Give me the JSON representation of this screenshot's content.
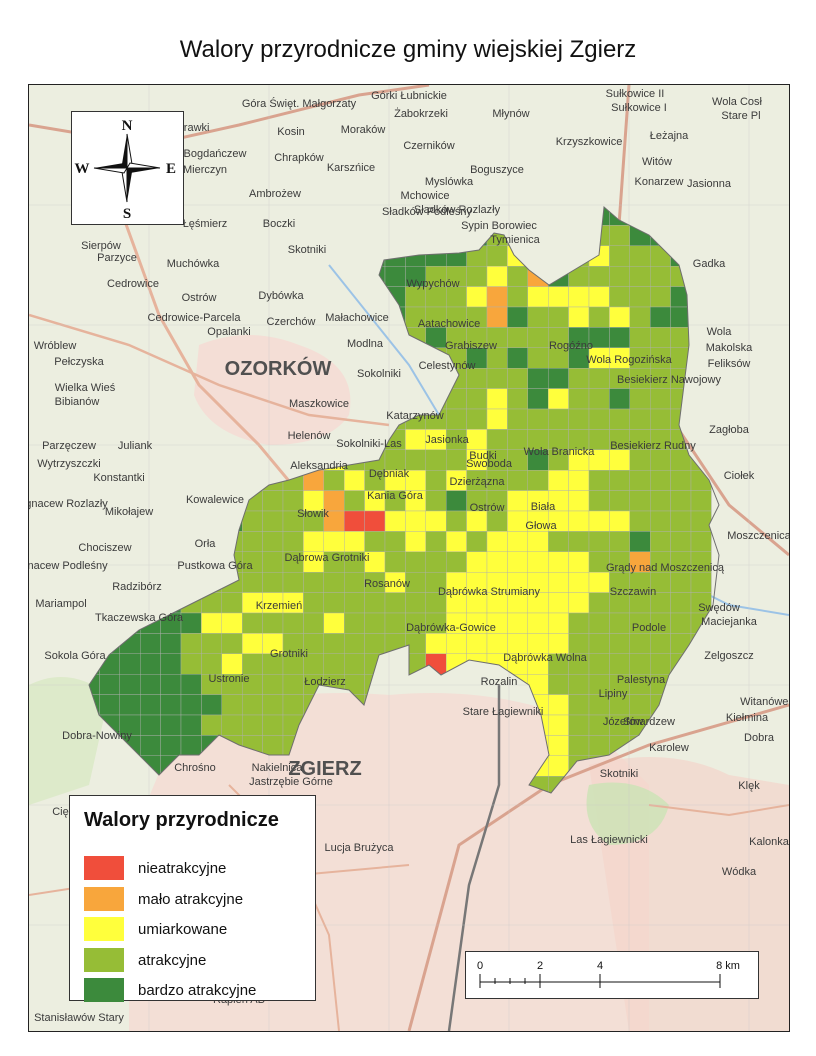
{
  "title": "Walory przyrodnicze gminy wiejskiej Zgierz",
  "compass": {
    "n": "N",
    "s": "S",
    "e": "E",
    "w": "W"
  },
  "legend": {
    "title": "Walory przyrodnicze",
    "items": [
      {
        "label": "nieatrakcyjne",
        "color": "#f04e3b"
      },
      {
        "label": "mało atrakcyjne",
        "color": "#f8a63c"
      },
      {
        "label": "umiarkowane",
        "color": "#ffff3c"
      },
      {
        "label": "atrakcyjne",
        "color": "#96bd36"
      },
      {
        "label": "bardzo atrakcyjne",
        "color": "#3c8a3c"
      }
    ]
  },
  "scale": {
    "ticks": [
      "0",
      "2",
      "4",
      "8 km"
    ]
  },
  "towns": [
    "OZORKÓW",
    "ZGIERZ"
  ],
  "places": [
    "Góra Święt. Małgorzaty",
    "Górki Łubnickie",
    "Żabokrzeki",
    "Młynów",
    "Sułkowice II",
    "Sułkowice I",
    "Wola Cosł",
    "Stare Pl",
    "Morawki",
    "Kosin",
    "Moraków",
    "Krzyszkowice",
    "Łeżajna",
    "Bogdańczew",
    "Chrapków",
    "Czerników",
    "Mierczyn",
    "Karszńice",
    "Boguszyce",
    "Witów",
    "Ambrożew",
    "Myslówka",
    "Konarzew",
    "Jasionna",
    "Łęśmierz",
    "Boczki",
    "Mchowice",
    "Sładków Podleśny",
    "Sładków Rozlazły",
    "Sypin Borowiec",
    "Tymienica",
    "Skotniki",
    "Sierpów",
    "Parzyce",
    "Muchówka",
    "Gadka",
    "Cedrowice",
    "Dybówka",
    "Ostrów",
    "Czerchów",
    "Małachowice",
    "Modlna",
    "Cedrowice-Parcela",
    "Opalanki",
    "Wróblew",
    "Pełczyska",
    "Wola",
    "Makolska",
    "Feliksów",
    "Wielka Wieś",
    "Bibianów",
    "Sokolniki",
    "Maszkowice",
    "Zagłoba",
    "Parzęczew",
    "Helenów",
    "Sokolniki-Las",
    "Juliank",
    "Wytrzyszczki",
    "Konstantki",
    "Aleksandria",
    "Ciołek",
    "Ignacew Rozlazły",
    "Mikołajew",
    "Kowalewice",
    "Chociszew",
    "Orła",
    "Pustkowa Góra",
    "Ignacew Podleśny",
    "Radzibórz",
    "Moszczenica",
    "Mariampol",
    "Tkaczewska Góra",
    "Swędów",
    "Maciejanka",
    "Sokola Góra",
    "Zelgoszcz",
    "Witanówek",
    "Kiełmina",
    "Dobra",
    "Karolew",
    "Klęk",
    "Dobra-Nowiny",
    "Chrośno",
    "Nakielnica",
    "Jastrzębie Górne",
    "Skotniki",
    "Las Łagiewnicki",
    "Ciężków",
    "Lucja Brużyca",
    "Kalonka",
    "Wódka",
    "Rapień AB",
    "Stanisławów Stary",
    "Wypychów",
    "Aatachowice",
    "Grabiszew",
    "Celestynów",
    "Katarzynów",
    "Jasionka",
    "Budki",
    "Swoboda",
    "Dębniak",
    "Kania Góra",
    "Dzierżązna",
    "Biała",
    "Słowik",
    "Dąbrowa Grotniki",
    "Ostrów",
    "Głowa",
    "Rosanów",
    "Dąbrówka Strumiany",
    "Szczawin",
    "Dąbrówka-Gowice",
    "Dąbrówka Wolna",
    "Krzemień",
    "Grotniki",
    "Ustronie",
    "Łodzierz",
    "Rozalin",
    "Stare Łagiewniki",
    "Rogóźno",
    "Wola Rogozińska",
    "Besiekierz Nawojowy",
    "Besiekierz Rudny",
    "Wola Branicka",
    "Grądy nad Moszczenicą",
    "Podole",
    "Palestyna",
    "Smardzew",
    "Lipiny",
    "Józefów"
  ]
}
